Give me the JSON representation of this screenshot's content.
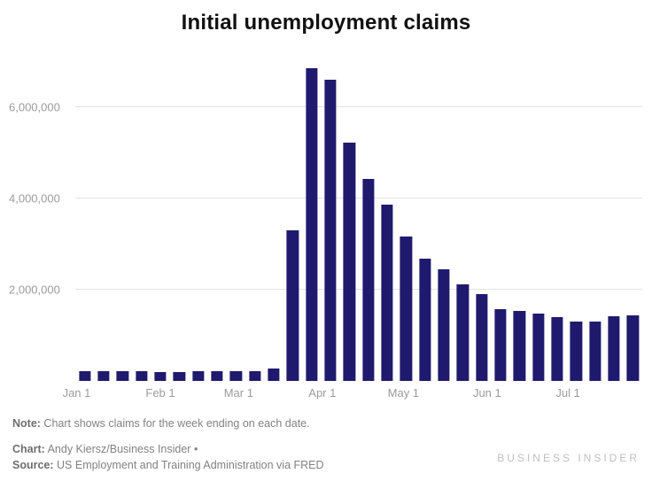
{
  "footer": {
    "note_label": "Note:",
    "note_text": " Chart shows claims for the week ending on each date.",
    "chart_credit_label": "Chart:",
    "chart_credit_text": " Andy Kiersz/Business Insider •",
    "source_label": "Source:",
    "source_text": " US Employment and Training Administration via FRED",
    "watermark": "BUSINESS INSIDER"
  },
  "colors": {
    "bar": "#1f1a6e",
    "gridline": "#e3e3e3",
    "axis_text": "#9b9b9b",
    "note_text": "#828282",
    "watermark": "#bfbfbf",
    "title_text": "#111111"
  },
  "chart_data": {
    "type": "bar",
    "title": "Initial unemployment claims",
    "x": [
      "Jan 4",
      "Jan 11",
      "Jan 18",
      "Jan 25",
      "Feb 1",
      "Feb 8",
      "Feb 15",
      "Feb 22",
      "Feb 29",
      "Mar 7",
      "Mar 14",
      "Mar 21",
      "Mar 28",
      "Apr 4",
      "Apr 11",
      "Apr 18",
      "Apr 25",
      "May 2",
      "May 9",
      "May 16",
      "May 23",
      "May 30",
      "Jun 6",
      "Jun 13",
      "Jun 20",
      "Jun 27",
      "Jul 4",
      "Jul 11",
      "Jul 18",
      "Jul 25"
    ],
    "values": [
      214000,
      207000,
      223000,
      212000,
      203000,
      204000,
      215000,
      220000,
      217000,
      211000,
      282000,
      3307000,
      6867000,
      6615000,
      5237000,
      4442000,
      3867000,
      3176000,
      2687000,
      2446000,
      2123000,
      1897000,
      1566000,
      1540000,
      1480000,
      1408000,
      1310000,
      1300000,
      1416000,
      1434000
    ],
    "ylabel": "",
    "xlabel": "",
    "ylim": [
      0,
      7000000
    ],
    "grid": "horizontal",
    "legend": "none",
    "y_ticks": [
      {
        "value": 2000000,
        "label": "2,000,000"
      },
      {
        "value": 4000000,
        "label": "4,000,000"
      },
      {
        "value": 6000000,
        "label": "6,000,000"
      }
    ],
    "x_ticks": [
      {
        "label": "Jan 1",
        "index": -0.43
      },
      {
        "label": "Feb 1",
        "index": 4.0
      },
      {
        "label": "Mar 1",
        "index": 8.14
      },
      {
        "label": "Apr 1",
        "index": 12.57
      },
      {
        "label": "May 1",
        "index": 16.86
      },
      {
        "label": "Jun 1",
        "index": 21.29
      },
      {
        "label": "Jul 1",
        "index": 25.57
      }
    ]
  }
}
